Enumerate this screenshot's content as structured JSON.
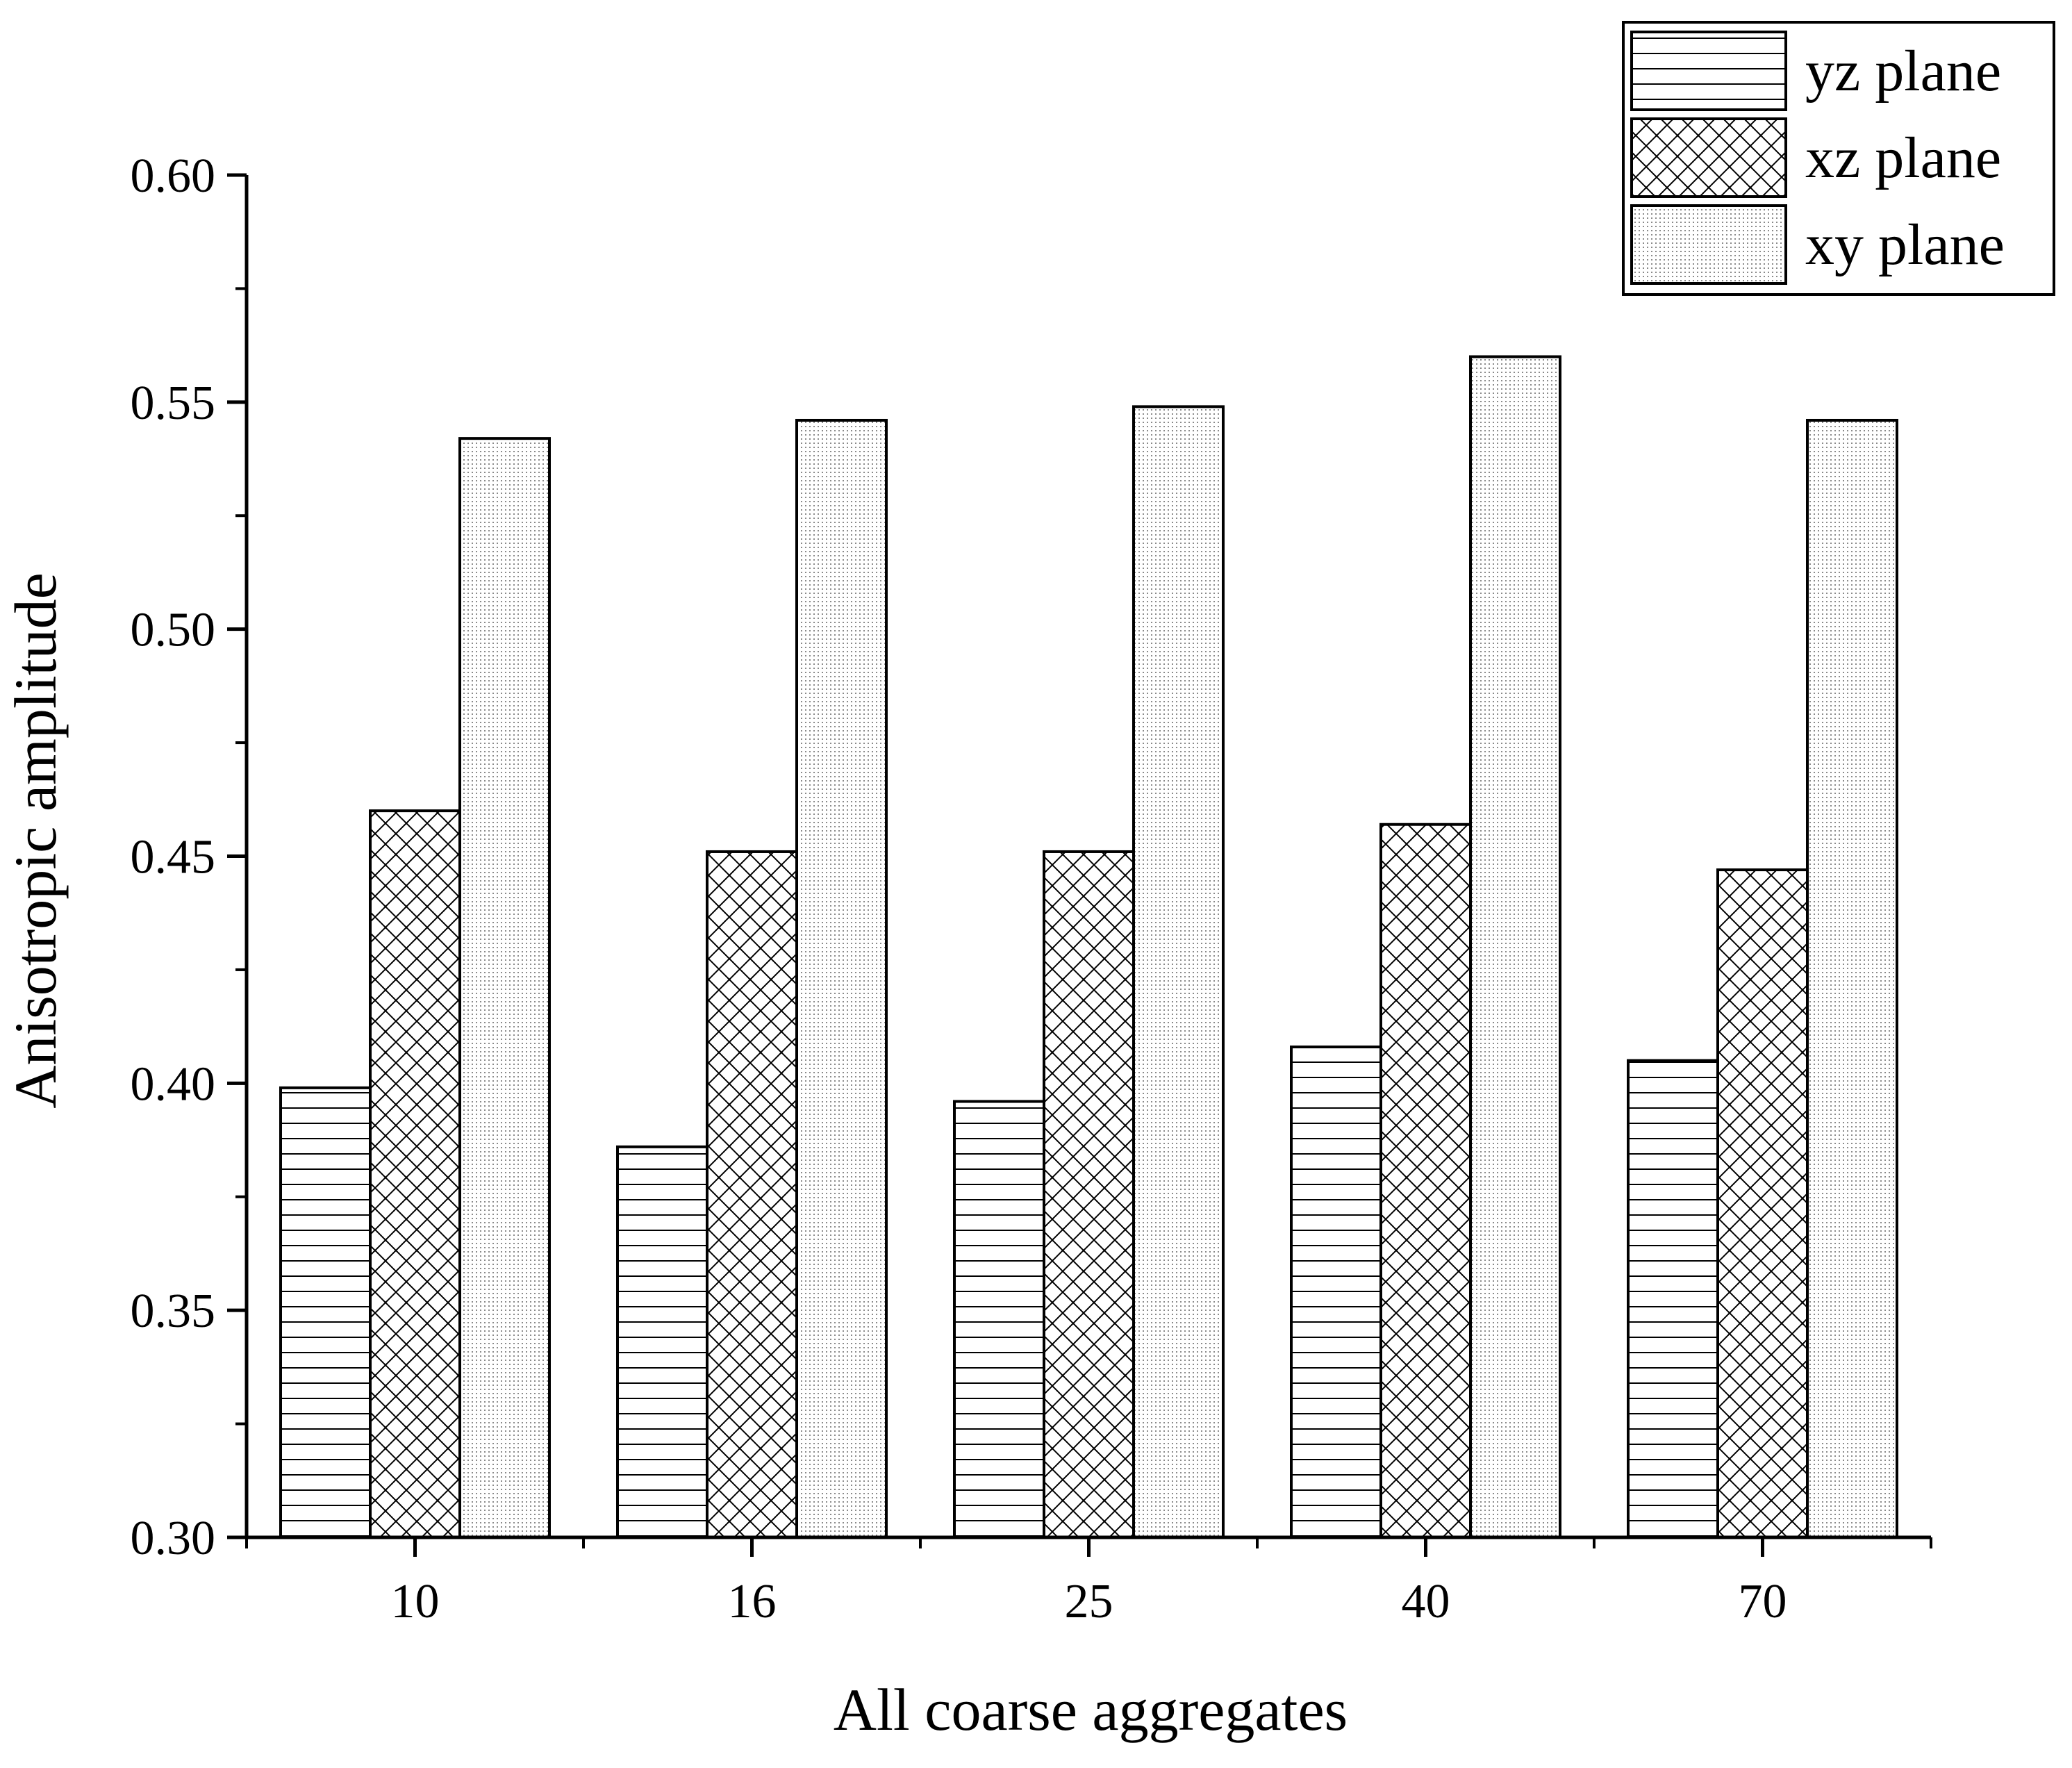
{
  "chart_data": {
    "type": "bar",
    "title": "",
    "xlabel": "All coarse aggregates",
    "ylabel": "Anisotropic amplitude",
    "categories": [
      "10",
      "16",
      "25",
      "40",
      "70"
    ],
    "series": [
      {
        "name": "yz plane",
        "pattern": "horizontal-lines",
        "values": [
          0.399,
          0.386,
          0.396,
          0.408,
          0.405
        ]
      },
      {
        "name": "xz plane",
        "pattern": "crosshatch",
        "values": [
          0.46,
          0.451,
          0.451,
          0.457,
          0.447
        ]
      },
      {
        "name": "xy plane",
        "pattern": "dots",
        "values": [
          0.542,
          0.546,
          0.549,
          0.56,
          0.546
        ]
      }
    ],
    "ylim": [
      0.3,
      0.6
    ],
    "yticks": [
      "0.30",
      "0.35",
      "0.40",
      "0.45",
      "0.50",
      "0.55",
      "0.60"
    ],
    "legend_position": "top-right",
    "grid": false
  }
}
